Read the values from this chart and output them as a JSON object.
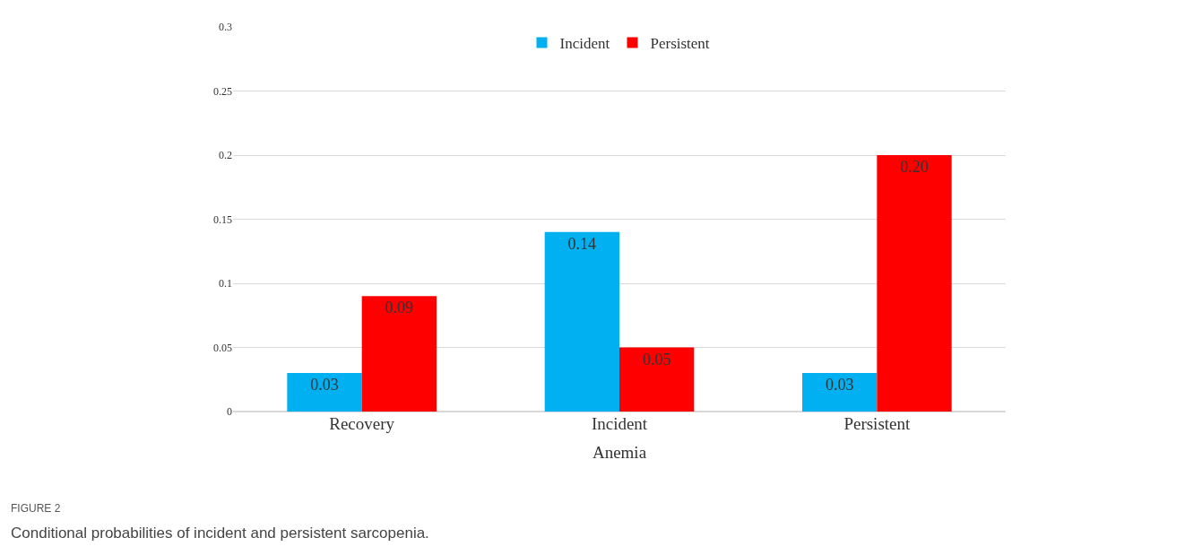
{
  "chart_data": {
    "type": "bar",
    "categories": [
      "Recovery",
      "Incident",
      "Persistent"
    ],
    "xlabel": "Anemia",
    "series": [
      {
        "name": "Incident",
        "color": "#00b0f0",
        "values": [
          0.03,
          0.14,
          0.03
        ],
        "value_labels": [
          "0.03",
          "0.14",
          "0.03"
        ]
      },
      {
        "name": "Persistent",
        "color": "#ff0000",
        "values": [
          0.09,
          0.05,
          0.2
        ],
        "value_labels": [
          "0.09",
          "0.05",
          "0.20"
        ]
      }
    ],
    "ylim": [
      0,
      0.3
    ],
    "yticks": [
      0,
      0.05,
      0.1,
      0.15,
      0.2,
      0.25,
      0.3
    ],
    "grid": "y",
    "legend": "top",
    "annotations": [
      "FIGURE 2",
      "Conditional probabilities of incident and persistent sarcopenia."
    ]
  }
}
